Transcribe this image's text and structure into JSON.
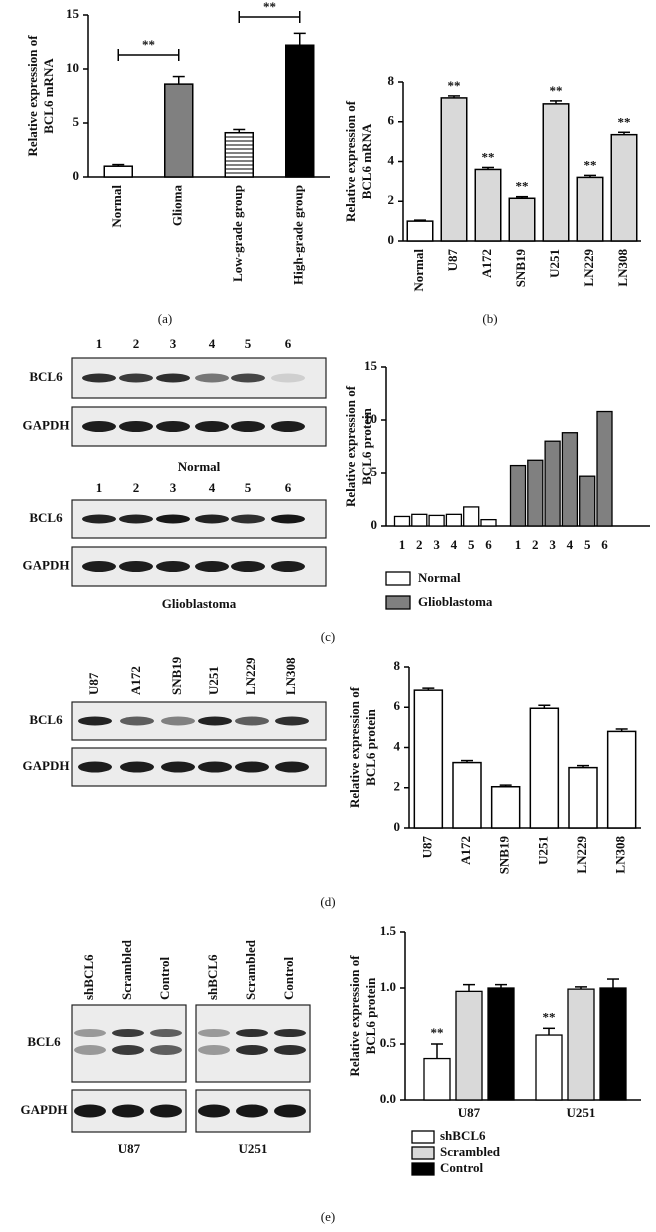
{
  "chart_data": [
    {
      "type": "bar",
      "caption": "(a)",
      "ylabel": [
        "Relative expression of",
        "BCL6 mRNA"
      ],
      "categories": [
        "Normal",
        "Glioma",
        "Low-grade group",
        "High-grade group"
      ],
      "values": [
        1.0,
        8.6,
        4.1,
        12.2
      ],
      "errors": [
        0.15,
        0.7,
        0.3,
        1.1
      ],
      "colors": [
        "#ffffff",
        "#808080",
        "#ffffff",
        "#000000"
      ],
      "hatch": [
        false,
        false,
        true,
        false
      ],
      "annotations": [
        "**",
        "**"
      ],
      "ylim": [
        0,
        15
      ],
      "yticks": [
        0,
        5,
        10,
        15
      ]
    },
    {
      "type": "bar",
      "caption": "(b)",
      "ylabel": [
        "Relative expression of",
        "BCL6 mRNA"
      ],
      "categories": [
        "Normal",
        "U87",
        "A172",
        "SNB19",
        "U251",
        "LN229",
        "LN308"
      ],
      "values": [
        1.0,
        7.2,
        3.6,
        2.15,
        6.9,
        3.2,
        5.35
      ],
      "errors": [
        0.05,
        0.1,
        0.1,
        0.08,
        0.15,
        0.1,
        0.12
      ],
      "colors": [
        "#ffffff",
        "#d9d9d9",
        "#d9d9d9",
        "#d9d9d9",
        "#d9d9d9",
        "#d9d9d9",
        "#d9d9d9"
      ],
      "annotations": [
        "**",
        "**",
        "**",
        "**",
        "**",
        "**"
      ],
      "ylim": [
        0,
        8
      ],
      "yticks": [
        0,
        2,
        4,
        6,
        8
      ]
    },
    {
      "type": "bar",
      "caption": "(c)",
      "ylabel": [
        "Relative expression of",
        "BCL6 protein"
      ],
      "categories": [
        "1",
        "2",
        "3",
        "4",
        "5",
        "6"
      ],
      "series": [
        {
          "name": "Normal",
          "color": "#ffffff",
          "values": [
            0.9,
            1.1,
            1.0,
            1.1,
            1.8,
            0.6
          ]
        },
        {
          "name": "Glioblastoma",
          "color": "#808080",
          "values": [
            5.7,
            6.2,
            8.0,
            8.8,
            4.7,
            10.8
          ]
        }
      ],
      "ylim": [
        0,
        15
      ],
      "yticks": [
        0,
        5,
        10,
        15
      ],
      "blot": {
        "lanes": [
          "1",
          "2",
          "3",
          "4",
          "5",
          "6"
        ],
        "rows": [
          "BCL6",
          "GAPDH"
        ],
        "labels": [
          "Normal",
          "Glioblastoma"
        ]
      }
    },
    {
      "type": "bar",
      "caption": "(d)",
      "ylabel": [
        "Relative expression of",
        "BCL6 protein"
      ],
      "categories": [
        "U87",
        "A172",
        "SNB19",
        "U251",
        "LN229",
        "LN308"
      ],
      "values": [
        6.85,
        3.25,
        2.05,
        5.95,
        3.0,
        4.8
      ],
      "errors": [
        0.1,
        0.1,
        0.08,
        0.15,
        0.1,
        0.12
      ],
      "colors": [
        "#ffffff",
        "#ffffff",
        "#ffffff",
        "#ffffff",
        "#ffffff",
        "#ffffff"
      ],
      "ylim": [
        0,
        8
      ],
      "yticks": [
        0,
        2,
        4,
        6,
        8
      ],
      "blot": {
        "lanes": [
          "U87",
          "A172",
          "SNB19",
          "U251",
          "LN229",
          "LN308"
        ],
        "rows": [
          "BCL6",
          "GAPDH"
        ]
      }
    },
    {
      "type": "bar",
      "caption": "(e)",
      "ylabel": [
        "Relative expression of",
        "BCL6 protein"
      ],
      "categories": [
        "U87",
        "U251"
      ],
      "series": [
        {
          "name": "shBCL6",
          "color": "#ffffff",
          "values": [
            0.37,
            0.58
          ],
          "errors": [
            0.13,
            0.06
          ]
        },
        {
          "name": "Scrambled",
          "color": "#d9d9d9",
          "values": [
            0.97,
            0.99
          ],
          "errors": [
            0.06,
            0.02
          ]
        },
        {
          "name": "Control",
          "color": "#000000",
          "values": [
            1.0,
            1.0
          ],
          "errors": [
            0.03,
            0.08
          ]
        }
      ],
      "annotations": [
        "**",
        "**"
      ],
      "ylim": [
        0,
        1.5
      ],
      "yticks": [
        {
          "value": 0,
          "label": "0.0"
        },
        0.5,
        {
          "value": 1,
          "label": "1.0"
        },
        1.5
      ],
      "blot": {
        "lanes": [
          "shBCL6",
          "Scrambled",
          "Control"
        ],
        "rows": [
          "BCL6",
          "GAPDH"
        ],
        "labels": [
          "U87",
          "U251"
        ]
      }
    }
  ]
}
